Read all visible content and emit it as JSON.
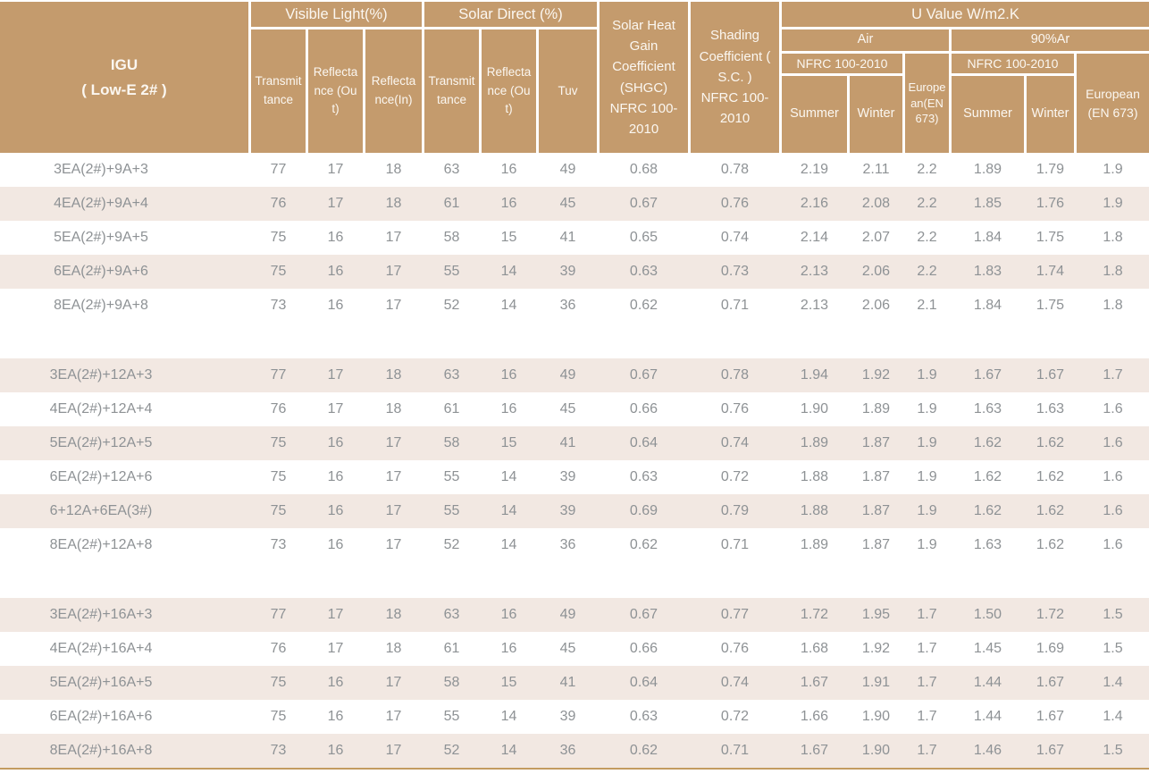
{
  "colors": {
    "header_bg": "#C49B6D",
    "stripe_bg": "#F2E8E2",
    "header_text": "#FBF7F1",
    "data_text": "#8E9295",
    "bottom_line": "#C39B60"
  },
  "header": {
    "igu_title": "IGU",
    "igu_subtitle": "( Low-E 2# )",
    "visible_light": "Visible Light(%)",
    "solar_direct": "Solar Direct (%)",
    "u_value": "U Value W/m2.K",
    "vl_transmittance": "Transmittance",
    "vl_reflectance_out": "Reflectance (Out)",
    "vl_reflectance_in": "Reflectance(In)",
    "sd_transmittance": "Transmittance",
    "sd_reflectance_out": "Reflectance (Out)",
    "tuv": "Tuv",
    "shgc": "Solar Heat Gain Coefficient (SHGC) NFRC 100-2010",
    "shading_coefficient": "Shading Coefficient ( S.C. ) NFRC 100-2010",
    "air": "Air",
    "argon": "90%Ar",
    "nfrc_air": "NFRC 100-2010",
    "nfrc_argon": "NFRC 100-2010",
    "summer_air": "Summer",
    "winter_air": "Winter",
    "european_air": "European(EN 673)",
    "summer_argon": "Summer",
    "winter_argon": "Winter",
    "european_argon": "European (EN 673)"
  },
  "table": {
    "value_columns": [
      "vl_transmittance",
      "vl_reflectance_out",
      "vl_reflectance_in",
      "sd_transmittance",
      "sd_reflectance_out",
      "tuv",
      "shgc",
      "sc",
      "air_summer",
      "air_winter",
      "air_european",
      "ar_summer",
      "ar_winter",
      "ar_european"
    ],
    "row_groups": [
      {
        "rows": [
          {
            "igu": "3EA(2#)+9A+3",
            "values": [
              "77",
              "17",
              "18",
              "63",
              "16",
              "49",
              "0.68",
              "0.78",
              "2.19",
              "2.11",
              "2.2",
              "1.89",
              "1.79",
              "1.9"
            ]
          },
          {
            "igu": "4EA(2#)+9A+4",
            "values": [
              "76",
              "17",
              "18",
              "61",
              "16",
              "45",
              "0.67",
              "0.76",
              "2.16",
              "2.08",
              "2.2",
              "1.85",
              "1.76",
              "1.9"
            ]
          },
          {
            "igu": "5EA(2#)+9A+5",
            "values": [
              "75",
              "16",
              "17",
              "58",
              "15",
              "41",
              "0.65",
              "0.74",
              "2.14",
              "2.07",
              "2.2",
              "1.84",
              "1.75",
              "1.8"
            ]
          },
          {
            "igu": "6EA(2#)+9A+6",
            "values": [
              "75",
              "16",
              "17",
              "55",
              "14",
              "39",
              "0.63",
              "0.73",
              "2.13",
              "2.06",
              "2.2",
              "1.83",
              "1.74",
              "1.8"
            ]
          },
          {
            "igu": "8EA(2#)+9A+8",
            "values": [
              "73",
              "16",
              "17",
              "52",
              "14",
              "36",
              "0.62",
              "0.71",
              "2.13",
              "2.06",
              "2.1",
              "1.84",
              "1.75",
              "1.8"
            ]
          }
        ]
      },
      {
        "rows": [
          {
            "igu": "3EA(2#)+12A+3",
            "values": [
              "77",
              "17",
              "18",
              "63",
              "16",
              "49",
              "0.67",
              "0.78",
              "1.94",
              "1.92",
              "1.9",
              "1.67",
              "1.67",
              "1.7"
            ]
          },
          {
            "igu": "4EA(2#)+12A+4",
            "values": [
              "76",
              "17",
              "18",
              "61",
              "16",
              "45",
              "0.66",
              "0.76",
              "1.90",
              "1.89",
              "1.9",
              "1.63",
              "1.63",
              "1.6"
            ]
          },
          {
            "igu": "5EA(2#)+12A+5",
            "values": [
              "75",
              "16",
              "17",
              "58",
              "15",
              "41",
              "0.64",
              "0.74",
              "1.89",
              "1.87",
              "1.9",
              "1.62",
              "1.62",
              "1.6"
            ]
          },
          {
            "igu": "6EA(2#)+12A+6",
            "values": [
              "75",
              "16",
              "17",
              "55",
              "14",
              "39",
              "0.63",
              "0.72",
              "1.88",
              "1.87",
              "1.9",
              "1.62",
              "1.62",
              "1.6"
            ]
          },
          {
            "igu": "6+12A+6EA(3#)",
            "values": [
              "75",
              "16",
              "17",
              "55",
              "14",
              "39",
              "0.69",
              "0.79",
              "1.88",
              "1.87",
              "1.9",
              "1.62",
              "1.62",
              "1.6"
            ]
          },
          {
            "igu": "8EA(2#)+12A+8",
            "values": [
              "73",
              "16",
              "17",
              "52",
              "14",
              "36",
              "0.62",
              "0.71",
              "1.89",
              "1.87",
              "1.9",
              "1.63",
              "1.62",
              "1.6"
            ]
          }
        ]
      },
      {
        "rows": [
          {
            "igu": "3EA(2#)+16A+3",
            "values": [
              "77",
              "17",
              "18",
              "63",
              "16",
              "49",
              "0.67",
              "0.77",
              "1.72",
              "1.95",
              "1.7",
              "1.50",
              "1.72",
              "1.5"
            ]
          },
          {
            "igu": "4EA(2#)+16A+4",
            "values": [
              "76",
              "17",
              "18",
              "61",
              "16",
              "45",
              "0.66",
              "0.76",
              "1.68",
              "1.92",
              "1.7",
              "1.45",
              "1.69",
              "1.5"
            ]
          },
          {
            "igu": "5EA(2#)+16A+5",
            "values": [
              "75",
              "16",
              "17",
              "58",
              "15",
              "41",
              "0.64",
              "0.74",
              "1.67",
              "1.91",
              "1.7",
              "1.44",
              "1.67",
              "1.4"
            ]
          },
          {
            "igu": "6EA(2#)+16A+6",
            "values": [
              "75",
              "16",
              "17",
              "55",
              "14",
              "39",
              "0.63",
              "0.72",
              "1.66",
              "1.90",
              "1.7",
              "1.44",
              "1.67",
              "1.4"
            ]
          },
          {
            "igu": "8EA(2#)+16A+8",
            "values": [
              "73",
              "16",
              "17",
              "52",
              "14",
              "36",
              "0.62",
              "0.71",
              "1.67",
              "1.90",
              "1.7",
              "1.46",
              "1.67",
              "1.5"
            ]
          }
        ]
      }
    ]
  }
}
